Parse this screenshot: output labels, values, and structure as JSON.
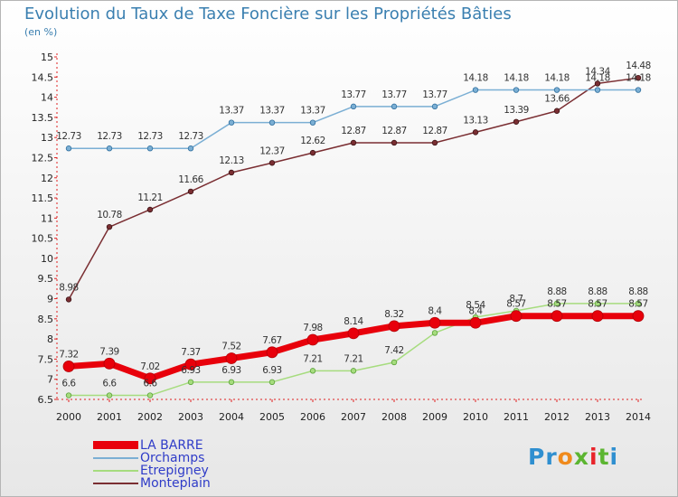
{
  "title": "Evolution du Taux de Taxe Foncière sur les Propriétés Bâties",
  "unit_label": "(en %)",
  "logo": {
    "text": "Proxiti",
    "colors": [
      "#2f8fd0",
      "#2f8fd0",
      "#f08a1c",
      "#5cb531",
      "#e8232a",
      "#5cb531",
      "#2f8fd0"
    ]
  },
  "chart_data": {
    "type": "line",
    "title": "Evolution du Taux de Taxe Foncière sur les Propriétés Bâties",
    "ylabel": "(en %)",
    "xlabel": "",
    "x": [
      2000,
      2001,
      2002,
      2003,
      2004,
      2005,
      2006,
      2007,
      2008,
      2009,
      2010,
      2011,
      2012,
      2013,
      2014
    ],
    "ylim": [
      6.5,
      15
    ],
    "yticks": [
      6.5,
      7,
      7.5,
      8,
      8.5,
      9,
      9.5,
      10,
      10.5,
      11,
      11.5,
      12,
      12.5,
      13,
      13.5,
      14,
      14.5,
      15
    ],
    "grid": false,
    "legend_position": "bottom-left",
    "series": [
      {
        "name": "LA BARRE",
        "color": "#e8000b",
        "values": [
          7.32,
          7.39,
          7.02,
          7.37,
          7.52,
          7.67,
          7.98,
          8.14,
          8.32,
          8.4,
          8.4,
          8.57,
          8.57,
          8.57,
          8.57
        ]
      },
      {
        "name": "Orchamps",
        "color": "#7bafd4",
        "values": [
          12.73,
          12.73,
          12.73,
          12.73,
          13.37,
          13.37,
          13.37,
          13.77,
          13.77,
          13.77,
          14.18,
          14.18,
          14.18,
          14.18,
          14.18
        ]
      },
      {
        "name": "Etrepigney",
        "color": "#a6dc7e",
        "values": [
          6.6,
          6.6,
          6.6,
          6.93,
          6.93,
          6.93,
          7.21,
          7.21,
          7.42,
          8.15,
          8.54,
          8.7,
          8.88,
          8.88,
          8.88
        ]
      },
      {
        "name": "Monteplain",
        "color": "#7a2e32",
        "values": [
          8.98,
          10.78,
          11.21,
          11.66,
          12.13,
          12.37,
          12.62,
          12.87,
          12.87,
          12.87,
          13.13,
          13.39,
          13.66,
          14.34,
          14.48
        ]
      }
    ],
    "data_labels": [
      {
        "series": "LA BARRE",
        "labels": [
          "7.32",
          "7.39",
          "7.02",
          "7.37",
          "7.52",
          "7.67",
          "7.98",
          "8.14",
          "8.32",
          "8.4",
          "8.4",
          "8.57",
          "8.57",
          "8.57",
          "8.57"
        ]
      },
      {
        "series": "Orchamps",
        "labels": [
          "12.73",
          "12.73",
          "12.73",
          "12.73",
          "13.37",
          "13.37",
          "13.37",
          "13.77",
          "13.77",
          "13.77",
          "14.18",
          "14.18",
          "14.18",
          "14.18",
          "14.18"
        ]
      },
      {
        "series": "Etrepigney",
        "labels": [
          "6.6",
          "6.6",
          "6.6",
          "6.93",
          "6.93",
          "6.93",
          "7.21",
          "7.21",
          "7.42",
          "",
          "8.54",
          "8.7",
          "8.88",
          "8.88",
          "8.88"
        ]
      },
      {
        "series": "Monteplain",
        "labels": [
          "8.98",
          "10.78",
          "11.21",
          "11.66",
          "12.13",
          "12.37",
          "12.62",
          "12.87",
          "12.87",
          "12.87",
          "13.13",
          "13.39",
          "13.66",
          "14.34",
          "14.48"
        ]
      }
    ]
  }
}
